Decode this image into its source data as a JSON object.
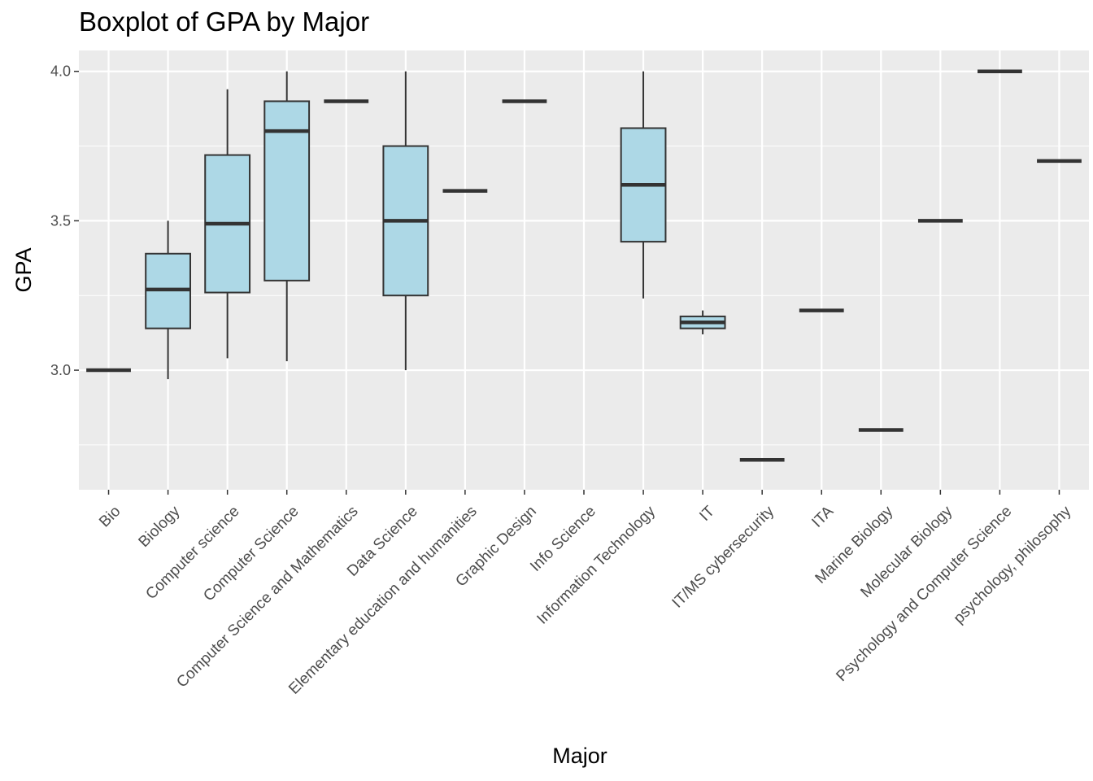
{
  "chart_data": {
    "type": "boxplot",
    "title": "Boxplot of GPA by Major",
    "xlabel": "Major",
    "ylabel": "GPA",
    "ylim": [
      2.6,
      4.07
    ],
    "y_ticks": [
      "3.0",
      "3.5",
      "4.0"
    ],
    "grid": true,
    "box_fill": "#ADD8E6",
    "panel_background": "#EBEBEB",
    "categories": [
      "Bio",
      "Biology",
      "Computer science",
      "Computer Science",
      "Computer Science and Mathematics",
      "Data Science",
      "Elementary education and humanities",
      "Graphic Design",
      "Info Science",
      "Information Technology",
      "IT",
      "IT/MS cybersecurity",
      "ITA",
      "Marine Biology",
      "Molecular Biology",
      "Psychology and Computer Science",
      "psychology, philosophy"
    ],
    "boxes": [
      {
        "min": 3.0,
        "q1": 3.0,
        "median": 3.0,
        "q3": 3.0,
        "max": 3.0
      },
      {
        "min": 2.97,
        "q1": 3.14,
        "median": 3.27,
        "q3": 3.39,
        "max": 3.5
      },
      {
        "min": 3.04,
        "q1": 3.26,
        "median": 3.49,
        "q3": 3.72,
        "max": 3.94
      },
      {
        "min": 3.03,
        "q1": 3.3,
        "median": 3.8,
        "q3": 3.9,
        "max": 4.0
      },
      {
        "min": 3.9,
        "q1": 3.9,
        "median": 3.9,
        "q3": 3.9,
        "max": 3.9
      },
      {
        "min": 3.0,
        "q1": 3.25,
        "median": 3.5,
        "q3": 3.75,
        "max": 4.0
      },
      {
        "min": 3.6,
        "q1": 3.6,
        "median": 3.6,
        "q3": 3.6,
        "max": 3.6
      },
      {
        "min": 3.9,
        "q1": 3.9,
        "median": 3.9,
        "q3": 3.9,
        "max": 3.9
      },
      null,
      {
        "min": 3.24,
        "q1": 3.43,
        "median": 3.62,
        "q3": 3.81,
        "max": 4.0
      },
      {
        "min": 3.12,
        "q1": 3.14,
        "median": 3.16,
        "q3": 3.18,
        "max": 3.2
      },
      {
        "min": 2.7,
        "q1": 2.7,
        "median": 2.7,
        "q3": 2.7,
        "max": 2.7
      },
      {
        "min": 3.2,
        "q1": 3.2,
        "median": 3.2,
        "q3": 3.2,
        "max": 3.2
      },
      {
        "min": 2.8,
        "q1": 2.8,
        "median": 2.8,
        "q3": 2.8,
        "max": 2.8
      },
      {
        "min": 3.5,
        "q1": 3.5,
        "median": 3.5,
        "q3": 3.5,
        "max": 3.5
      },
      {
        "min": 4.0,
        "q1": 4.0,
        "median": 4.0,
        "q3": 4.0,
        "max": 4.0
      },
      {
        "min": 3.7,
        "q1": 3.7,
        "median": 3.7,
        "q3": 3.7,
        "max": 3.7
      }
    ]
  }
}
